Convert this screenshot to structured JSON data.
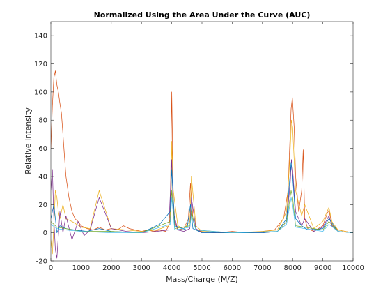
{
  "chart_data": {
    "type": "line",
    "title": "Normalized Using the Area Under the Curve (AUC)",
    "xlabel": "Mass/Charge (M/Z)",
    "ylabel": "Relative Intensity",
    "xlim": [
      0,
      10000
    ],
    "ylim": [
      -20,
      150
    ],
    "xticks": [
      0,
      1000,
      2000,
      3000,
      4000,
      5000,
      6000,
      7000,
      8000,
      9000,
      10000
    ],
    "yticks": [
      -20,
      0,
      20,
      40,
      60,
      80,
      100,
      120,
      140
    ],
    "grid": false,
    "series": [
      {
        "color": "#D95319",
        "x": [
          0,
          50,
          100,
          150,
          200,
          250,
          300,
          350,
          400,
          450,
          500,
          600,
          700,
          800,
          900,
          1000,
          1200,
          1400,
          1600,
          1800,
          2000,
          2200,
          2400,
          2600,
          2800,
          3000,
          3200,
          3400,
          3600,
          3800,
          3900,
          3950,
          4000,
          4050,
          4100,
          4200,
          4400,
          4550,
          4620,
          4700,
          4800,
          5000,
          5500,
          6000,
          6500,
          7000,
          7400,
          7700,
          7850,
          7900,
          7950,
          7990,
          8050,
          8100,
          8200,
          8300,
          8350,
          8400,
          8500,
          8700,
          9000,
          9150,
          9200,
          9300,
          9500,
          10000
        ],
        "y": [
          60,
          90,
          110,
          115,
          105,
          100,
          92,
          85,
          70,
          55,
          40,
          25,
          15,
          10,
          8,
          5,
          3,
          2,
          4,
          2,
          3,
          2,
          5,
          3,
          2,
          1,
          2,
          1,
          2,
          1,
          5,
          10,
          100,
          25,
          8,
          2,
          3,
          10,
          35,
          10,
          2,
          1,
          0,
          1,
          0,
          1,
          2,
          10,
          30,
          60,
          88,
          96,
          75,
          40,
          15,
          30,
          59,
          10,
          3,
          1,
          5,
          14,
          16,
          6,
          2,
          0
        ]
      },
      {
        "color": "#EDB120",
        "x": [
          0,
          50,
          100,
          150,
          200,
          250,
          300,
          400,
          500,
          700,
          1000,
          1300,
          1600,
          2000,
          2500,
          3000,
          3500,
          3900,
          3980,
          4000,
          4050,
          4200,
          4400,
          4600,
          4650,
          4800,
          5000,
          6000,
          7000,
          7500,
          7800,
          7900,
          7960,
          8000,
          8100,
          8300,
          8400,
          8700,
          9000,
          9200,
          9300,
          9500,
          10000
        ],
        "y": [
          -5,
          -15,
          5,
          30,
          25,
          15,
          10,
          20,
          10,
          8,
          4,
          3,
          30,
          3,
          2,
          1,
          2,
          5,
          20,
          65,
          30,
          5,
          3,
          8,
          40,
          5,
          1,
          0,
          1,
          2,
          15,
          50,
          80,
          75,
          30,
          12,
          20,
          3,
          8,
          18,
          8,
          2,
          0
        ]
      },
      {
        "color": "#7E2F8E",
        "x": [
          0,
          50,
          100,
          150,
          200,
          300,
          400,
          500,
          700,
          900,
          1100,
          1300,
          1600,
          2000,
          2500,
          3000,
          3500,
          3900,
          4000,
          4050,
          4200,
          4400,
          4600,
          4650,
          4800,
          5000,
          6000,
          7000,
          7500,
          7800,
          7920,
          7960,
          8000,
          8100,
          8300,
          8400,
          8700,
          9000,
          9200,
          9300,
          9500,
          10000
        ],
        "y": [
          30,
          45,
          10,
          -12,
          -18,
          15,
          0,
          12,
          -5,
          8,
          -2,
          2,
          25,
          3,
          1,
          0,
          1,
          2,
          52,
          15,
          2,
          1,
          3,
          25,
          3,
          0,
          0,
          0,
          1,
          8,
          35,
          52,
          45,
          15,
          5,
          10,
          1,
          4,
          12,
          5,
          1,
          0
        ]
      },
      {
        "color": "#0072BD",
        "x": [
          0,
          100,
          200,
          300,
          500,
          800,
          1200,
          1600,
          2000,
          3000,
          3600,
          3950,
          4000,
          4100,
          4500,
          4620,
          4700,
          5000,
          6000,
          7000,
          7500,
          7800,
          7950,
          8000,
          8100,
          8300,
          8500,
          9000,
          9200,
          9500,
          10000
        ],
        "y": [
          10,
          20,
          0,
          5,
          3,
          2,
          1,
          3,
          1,
          0,
          6,
          15,
          45,
          5,
          2,
          20,
          3,
          0,
          0,
          0,
          1,
          10,
          50,
          40,
          10,
          5,
          2,
          3,
          10,
          1,
          0
        ]
      },
      {
        "color": "#77AC30",
        "x": [
          0,
          200,
          500,
          1000,
          2000,
          3000,
          3950,
          4000,
          4100,
          4600,
          4650,
          4800,
          6000,
          7500,
          7800,
          7950,
          8000,
          8100,
          9000,
          9200,
          9500,
          10000
        ],
        "y": [
          8,
          4,
          3,
          1,
          1,
          0,
          8,
          30,
          3,
          5,
          15,
          2,
          0,
          1,
          8,
          30,
          25,
          5,
          2,
          8,
          1,
          0
        ]
      },
      {
        "color": "#4DBEEE",
        "x": [
          0,
          200,
          500,
          1000,
          2000,
          3000,
          3950,
          4000,
          4100,
          4600,
          4650,
          4800,
          6000,
          7500,
          7800,
          7950,
          8000,
          8100,
          9000,
          9200,
          9500,
          10000
        ],
        "y": [
          6,
          3,
          2,
          1,
          0,
          0,
          6,
          25,
          2,
          4,
          12,
          2,
          0,
          1,
          6,
          25,
          20,
          4,
          1,
          6,
          1,
          0
        ]
      }
    ]
  }
}
